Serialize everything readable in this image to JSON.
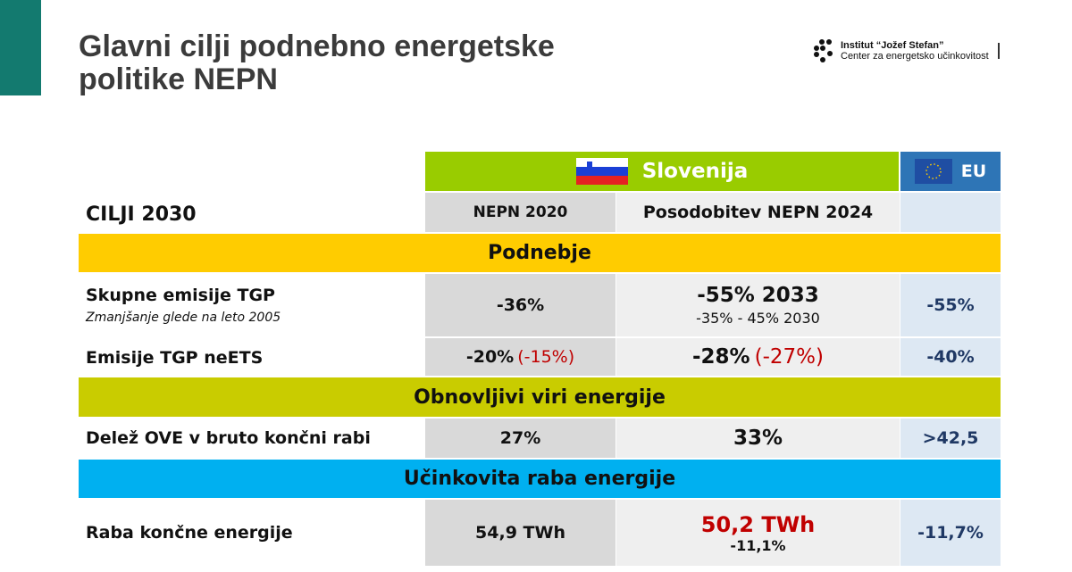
{
  "title": "Glavni cilji podnebno energetske politike NEPN",
  "logo": {
    "line1": "Institut “Jožef Stefan”",
    "line2": "Center za energetsko učinkovitost"
  },
  "colors": {
    "accent": "#137a6f",
    "slovenija": "#99cc00",
    "eu": "#2e75b6",
    "podnebje": "#ffcc00",
    "ove": "#c9cc00",
    "ure": "#00b0f0"
  },
  "table": {
    "country": "Slovenija",
    "eu": "EU",
    "goals": "CILJI 2030",
    "col1": "NEPN 2020",
    "col2": "Posodobitev NEPN 2024",
    "sections": [
      "Podnebje",
      "Obnovljivi viri energije",
      "Učinkovita raba energije"
    ],
    "rows": [
      {
        "label": "Skupne emisije TGP",
        "sublabel": "Zmanjšanje glede na leto 2005",
        "nepn2020": "-36%",
        "nepn2024": "-55% 2033",
        "nepn2024_sub": "-35% - 45% 2030",
        "eu": "-55%"
      },
      {
        "label": "Emisije TGP neETS",
        "nepn2020": "-20%",
        "nepn2020_alt": "(-15%)",
        "nepn2024": "-28%",
        "nepn2024_alt": "(-27%)",
        "eu": "-40%"
      },
      {
        "label": "Delež OVE v bruto končni rabi",
        "nepn2020": "27%",
        "nepn2024": "33%",
        "eu": ">42,5"
      },
      {
        "label": "Raba končne energije",
        "nepn2020": "54,9 TWh",
        "nepn2024": "50,2 TWh",
        "nepn2024_sub": "-11,1%",
        "eu": "-11,7%"
      }
    ]
  }
}
